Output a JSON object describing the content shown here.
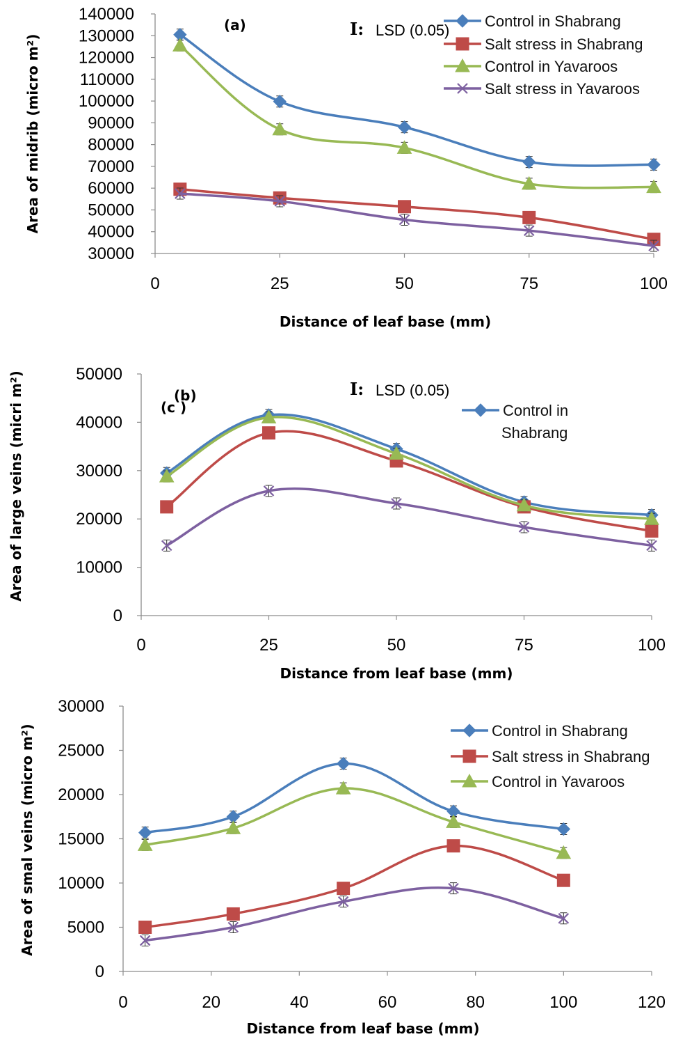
{
  "colors": {
    "control_shabrang": "#4a7ebb",
    "salt_shabrang": "#be4b48",
    "control_yavaroos": "#98b954",
    "salt_yavaroos": "#7d60a0"
  },
  "chart_data": [
    {
      "type": "line",
      "panel_label": "(a)",
      "lsd_symbol": "I:",
      "lsd_label": "LSD (0.05)",
      "xlabel": "Distance of leaf base (mm)",
      "ylabel": "Area of midrib (micro m²)",
      "xlim": [
        0,
        100
      ],
      "ylim": [
        30000,
        140000
      ],
      "xticks": [
        "0",
        "25",
        "50",
        "75",
        "100"
      ],
      "yticks": [
        "30000",
        "40000",
        "50000",
        "60000",
        "70000",
        "80000",
        "90000",
        "100000",
        "110000",
        "120000",
        "130000",
        "140000"
      ],
      "x": [
        5,
        25,
        50,
        75,
        100
      ],
      "legend_position": "top-right",
      "series": [
        {
          "name": "Control in Shabrang",
          "marker": "diamond",
          "values": [
            130500,
            99800,
            88000,
            72000,
            70800
          ]
        },
        {
          "name": "Salt stress in Shabrang",
          "marker": "square",
          "values": [
            59500,
            55500,
            51500,
            46500,
            36500
          ]
        },
        {
          "name": "Control in Yavaroos",
          "marker": "triangle",
          "values": [
            125500,
            87000,
            78500,
            62000,
            60500
          ]
        },
        {
          "name": "Salt stress in Yavaroos",
          "marker": "x",
          "values": [
            57500,
            54000,
            45500,
            40500,
            33500
          ]
        }
      ]
    },
    {
      "type": "line",
      "panel_label": "(b)",
      "panel_label_overlap": "(c )",
      "lsd_symbol": "I:",
      "lsd_label": "LSD (0.05)",
      "xlabel": "Distance from leaf base (mm)",
      "ylabel": "Area of large veins (micri m²)",
      "xlim": [
        0,
        100
      ],
      "ylim": [
        0,
        50000
      ],
      "xticks": [
        "0",
        "25",
        "50",
        "75",
        "100"
      ],
      "yticks": [
        "0",
        "10000",
        "20000",
        "30000",
        "40000",
        "50000"
      ],
      "x": [
        5,
        25,
        50,
        75,
        100
      ],
      "legend_position": "top-right",
      "series": [
        {
          "name": "Control in Shabrang",
          "marker": "diamond",
          "values": [
            29500,
            41500,
            34500,
            23500,
            20800
          ]
        },
        {
          "marker": "square",
          "values": [
            22500,
            37800,
            32000,
            22500,
            17500
          ]
        },
        {
          "marker": "triangle",
          "values": [
            28800,
            41000,
            33500,
            22800,
            20000
          ]
        },
        {
          "marker": "x",
          "values": [
            14500,
            25800,
            23200,
            18300,
            14500
          ]
        }
      ]
    },
    {
      "type": "line",
      "xlabel": "Distance from leaf base (mm)",
      "ylabel": "Area of smal veins (micro m²)",
      "xlim": [
        0,
        120
      ],
      "ylim": [
        0,
        30000
      ],
      "xticks": [
        "0",
        "20",
        "40",
        "60",
        "80",
        "100",
        "120"
      ],
      "yticks": [
        "0",
        "5000",
        "10000",
        "15000",
        "20000",
        "25000",
        "30000"
      ],
      "x": [
        5,
        25,
        50,
        75,
        100
      ],
      "legend_position": "top-right",
      "series": [
        {
          "name": "Control in Shabrang",
          "marker": "diamond",
          "values": [
            15700,
            17500,
            23500,
            18100,
            16100
          ]
        },
        {
          "name": "Salt stress in Shabrang",
          "marker": "square",
          "values": [
            5000,
            6500,
            9400,
            14200,
            10300
          ]
        },
        {
          "name": "Control in Yavaroos",
          "marker": "triangle",
          "values": [
            14300,
            16200,
            20700,
            16900,
            13400
          ]
        },
        {
          "marker": "x",
          "values": [
            3500,
            5000,
            7900,
            9400,
            6000
          ]
        }
      ]
    }
  ]
}
